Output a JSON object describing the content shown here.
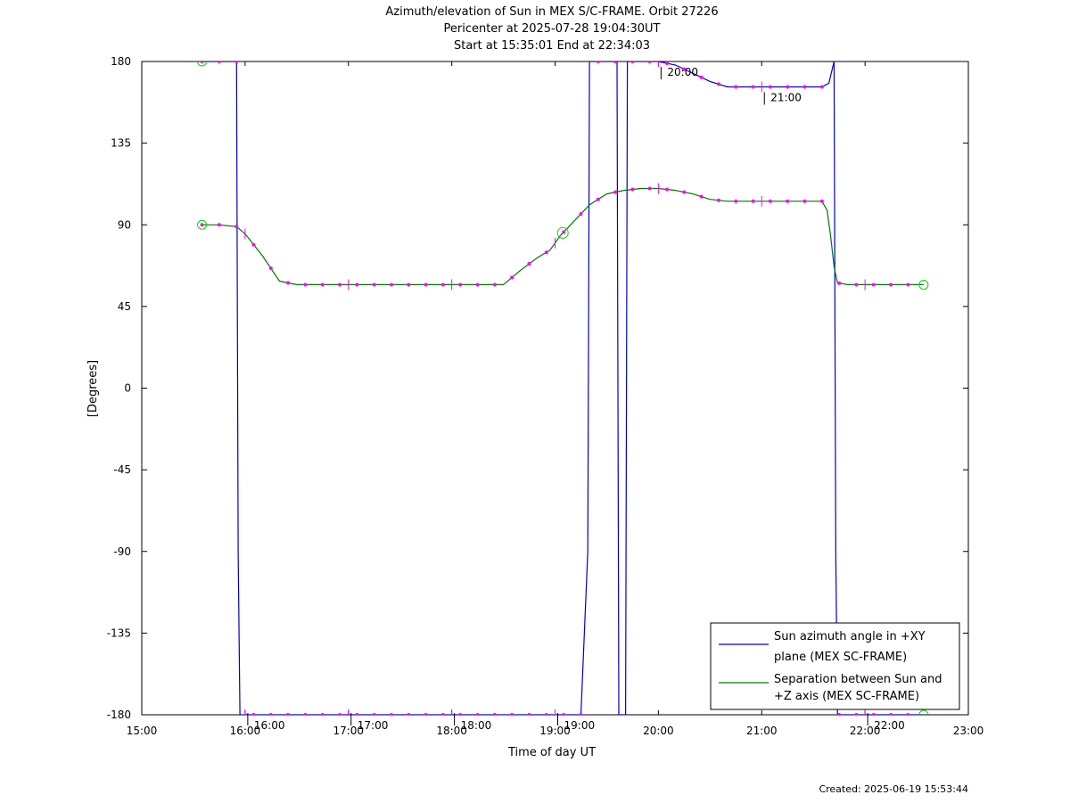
{
  "chart_data": {
    "type": "line",
    "title_lines": [
      "Azimuth/elevation of Sun in MEX S/C-FRAME.  Orbit 27226",
      "Pericenter at 2025-07-28 19:04:30UT",
      "Start at 15:35:01 End at 22:34:03"
    ],
    "xlabel": "Time of day UT",
    "ylabel": "[Degrees]",
    "xlim_hours": [
      15,
      23
    ],
    "ylim": [
      -180,
      180
    ],
    "x_tick_labels": [
      "15:00",
      "16:00",
      "17:00",
      "18:00",
      "19:00",
      "20:00",
      "21:00",
      "22:00",
      "23:00"
    ],
    "y_tick_labels": [
      "180",
      "135",
      "90",
      "45",
      "0",
      "-45",
      "-90",
      "-135",
      "-180"
    ],
    "legend_position": "bottom-right",
    "colors": {
      "azimuth": "#0000cc",
      "separation": "#007700",
      "marker": "#ff00ff",
      "endpoint": "#00dd00"
    },
    "series": [
      {
        "name": "Sun azimuth angle in +XY plane (MEX SC-FRAME)",
        "legend_lines": [
          "Sun azimuth angle in +XY",
          "plane (MEX SC-FRAME)"
        ],
        "color": "#0000cc",
        "x": [
          15.583,
          15.917,
          15.933,
          15.95,
          16.0,
          16.333,
          16.5,
          16.833,
          17.0,
          17.5,
          18.0,
          18.5,
          19.0,
          19.25,
          19.317,
          19.333,
          19.6,
          19.617,
          19.683,
          19.7,
          20.0,
          20.167,
          20.5,
          20.667,
          21.0,
          21.333,
          21.5,
          21.583,
          21.65,
          21.7,
          21.717,
          21.733,
          21.75,
          21.8,
          22.0,
          22.3,
          22.567
        ],
        "y": [
          180,
          180,
          -90,
          -180,
          -180,
          -180,
          -180,
          -180,
          -180,
          -180,
          -180,
          -180,
          -180,
          -180,
          -90,
          180,
          180,
          -180,
          -180,
          180,
          180,
          178,
          169,
          166,
          166,
          166,
          166,
          166,
          168,
          180,
          -90,
          -180,
          -180,
          -180,
          -180,
          -180,
          -180
        ]
      },
      {
        "name": "Separation between Sun and +Z axis (MEX SC-FRAME)",
        "legend_lines": [
          "Separation between Sun and",
          "+Z axis (MEX SC-FRAME)"
        ],
        "color": "#007700",
        "x": [
          15.583,
          15.75,
          15.917,
          16.0,
          16.167,
          16.333,
          16.5,
          17.0,
          17.5,
          18.0,
          18.333,
          18.5,
          18.667,
          18.833,
          18.95,
          19.05,
          19.167,
          19.333,
          19.5,
          19.667,
          19.833,
          20.0,
          20.167,
          20.333,
          20.5,
          20.667,
          21.0,
          21.333,
          21.5,
          21.583,
          21.633,
          21.667,
          21.7,
          21.733,
          21.833,
          22.0,
          22.333,
          22.567
        ],
        "y": [
          90,
          90,
          89,
          85,
          73,
          59,
          57,
          57,
          57,
          57,
          57,
          57,
          65,
          72,
          76,
          84,
          91,
          101,
          107,
          109,
          110,
          110,
          109,
          107,
          104,
          103,
          103,
          103,
          103,
          103,
          98,
          84,
          67,
          58,
          57,
          57,
          57,
          57
        ]
      }
    ],
    "annotations": [
      "16:00",
      "17:00",
      "18:00",
      "19:00",
      "20:00",
      "21:00",
      "22:00"
    ],
    "footer": "Created: 2025-06-19 15:53:44"
  }
}
